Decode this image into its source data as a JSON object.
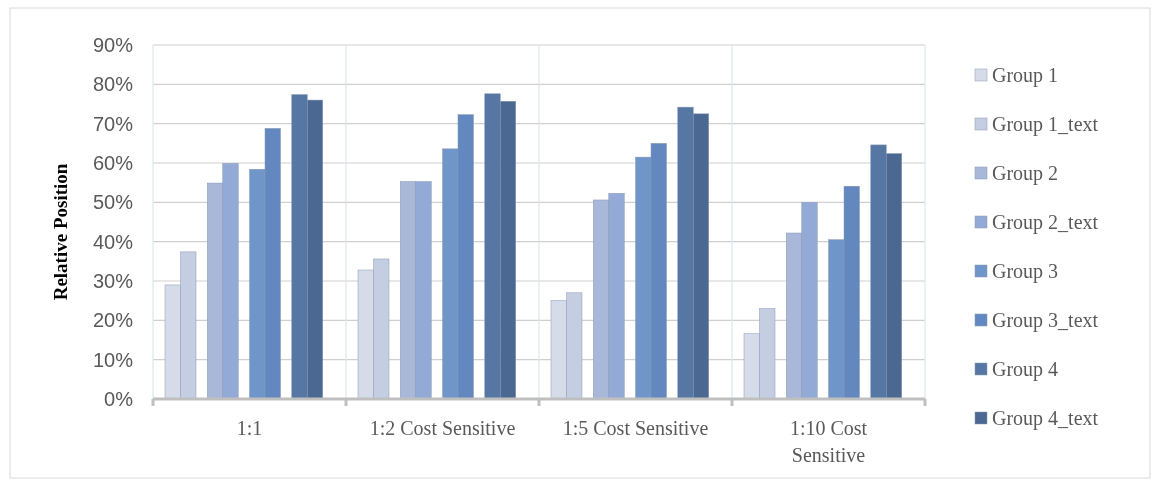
{
  "chart_data": {
    "type": "bar",
    "ylabel": "Relative Position",
    "categories": [
      "1:1",
      "1:2 Cost Sensitive",
      "1:5 Cost Sensitive",
      "1:10 Cost Sensitive"
    ],
    "series": [
      {
        "name": "Group 1",
        "color": "#d5dbe8",
        "values": [
          0.29,
          0.328,
          0.25,
          0.166
        ]
      },
      {
        "name": "Group 1_text",
        "color": "#c4cde1",
        "values": [
          0.374,
          0.356,
          0.27,
          0.23
        ]
      },
      {
        "name": "Group 2",
        "color": "#a9b7d9",
        "values": [
          0.549,
          0.553,
          0.506,
          0.422
        ]
      },
      {
        "name": "Group 2_text",
        "color": "#94aad6",
        "values": [
          0.599,
          0.553,
          0.523,
          0.5
        ]
      },
      {
        "name": "Group 3",
        "color": "#7095c9",
        "values": [
          0.584,
          0.636,
          0.615,
          0.405
        ]
      },
      {
        "name": "Group 3_text",
        "color": "#6288bf",
        "values": [
          0.688,
          0.723,
          0.65,
          0.541
        ]
      },
      {
        "name": "Group 4",
        "color": "#5677a3",
        "values": [
          0.774,
          0.776,
          0.742,
          0.646
        ]
      },
      {
        "name": "Group 4_text",
        "color": "#4a6891",
        "values": [
          0.76,
          0.757,
          0.725,
          0.624
        ]
      }
    ],
    "ylim": [
      0,
      0.9
    ],
    "yticks": [
      {
        "value": 0,
        "label": "0%"
      },
      {
        "value": 0.1,
        "label": "10%"
      },
      {
        "value": 0.2,
        "label": "20%"
      },
      {
        "value": 0.3,
        "label": "30%"
      },
      {
        "value": 0.4,
        "label": "40%"
      },
      {
        "value": 0.5,
        "label": "50%"
      },
      {
        "value": 0.6,
        "label": "60%"
      },
      {
        "value": 0.7,
        "label": "70%"
      },
      {
        "value": 0.8,
        "label": "80%"
      },
      {
        "value": 0.9,
        "label": "90%"
      }
    ],
    "grid": true,
    "legend": "right"
  }
}
